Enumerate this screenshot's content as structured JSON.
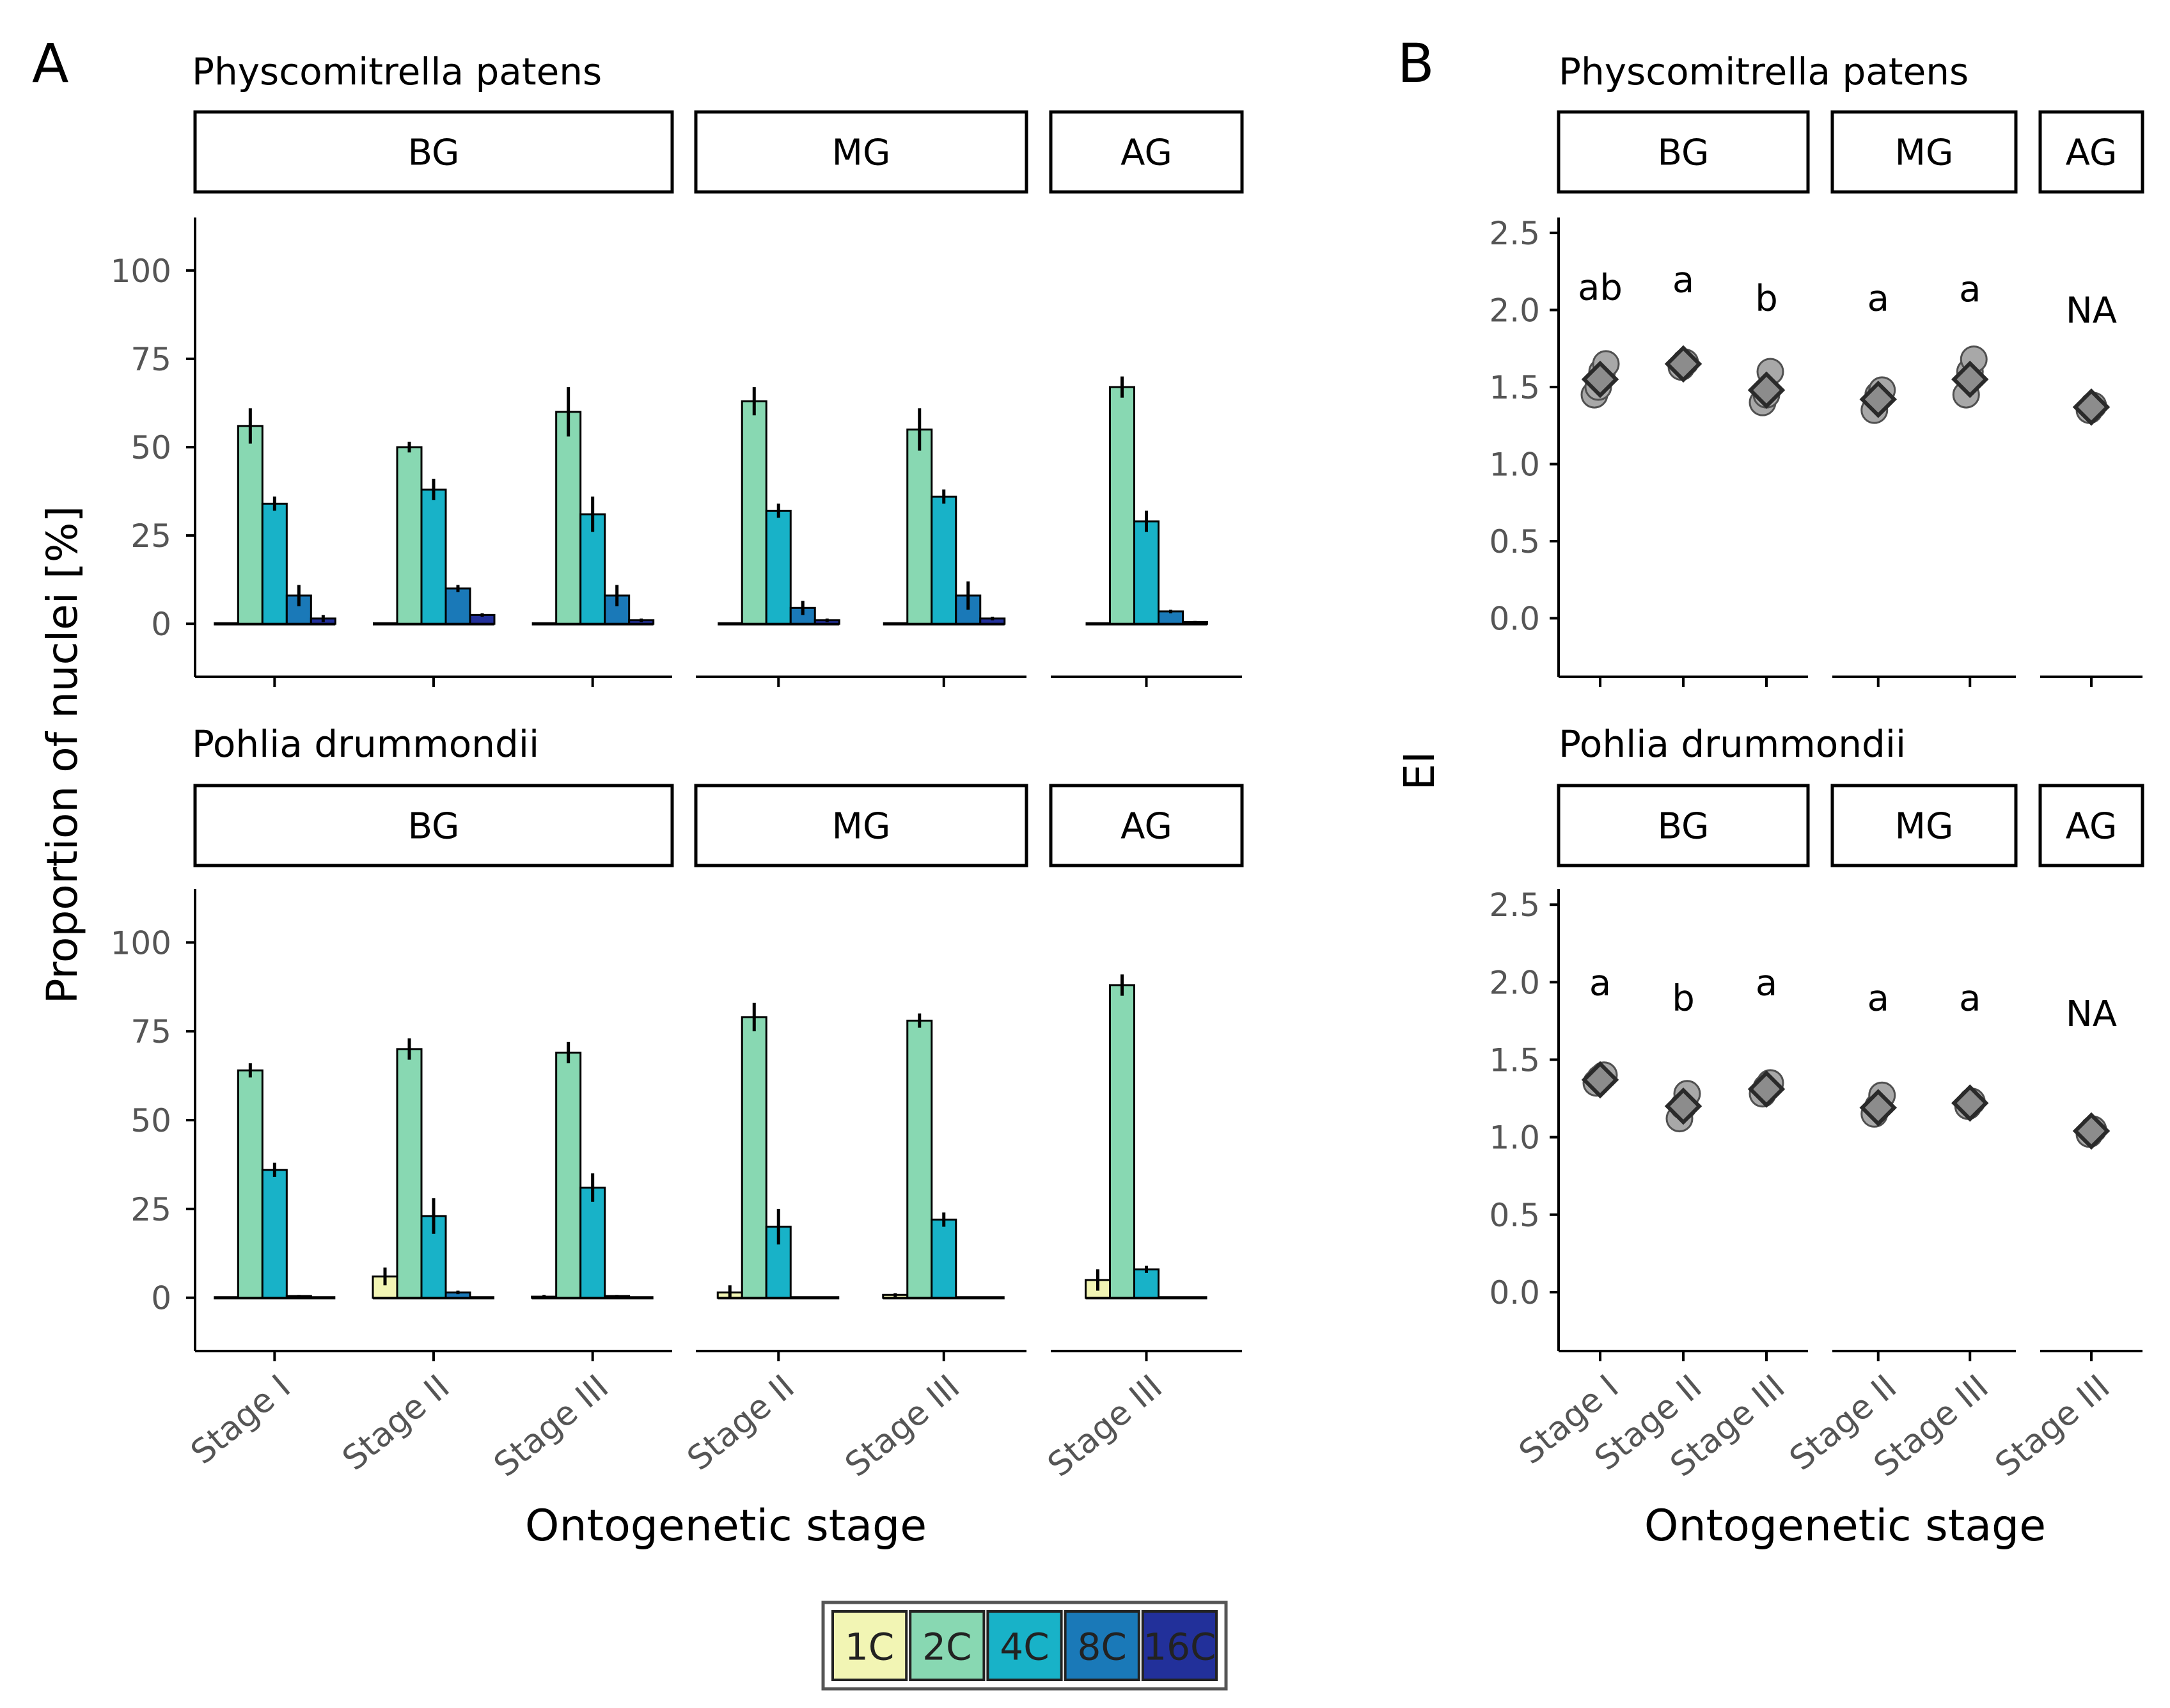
{
  "panel_labels": {
    "A": "A",
    "B": "B"
  },
  "colors": {
    "1C": "#f2f5b4",
    "2C": "#88d8b2",
    "4C": "#18b2c8",
    "8C": "#1a79b8",
    "16C": "#22309a",
    "axis": "#000000",
    "tick_text": "#555555",
    "point": "#a8a8a8",
    "point_edge": "#505050",
    "diamond": "#8c8c8c"
  },
  "legend": [
    "1C",
    "2C",
    "4C",
    "8C",
    "16C"
  ],
  "chart_data": [
    {
      "id": "A-top",
      "type": "bar",
      "title": "Physcomitrella patens",
      "ylabel": "Proportion of nuclei [%]",
      "xlabel": "Ontogenetic stage",
      "ylim": [
        -15,
        115
      ],
      "yticks": [
        0,
        25,
        50,
        75,
        100
      ],
      "ytick_labels": [
        "0",
        "25",
        "50",
        "75",
        "100"
      ],
      "series_names": [
        "1C",
        "2C",
        "4C",
        "8C",
        "16C"
      ],
      "facets": [
        {
          "label": "BG",
          "groups": [
            {
              "stage": "Stage I",
              "values": [
                0,
                56,
                34,
                8,
                1.5
              ],
              "errors": [
                0,
                5,
                2,
                3,
                1
              ]
            },
            {
              "stage": "Stage II",
              "values": [
                0,
                50,
                38,
                10,
                2.5
              ],
              "errors": [
                0,
                1.5,
                3,
                1,
                0.5
              ]
            },
            {
              "stage": "Stage III",
              "values": [
                0,
                60,
                31,
                8,
                1
              ],
              "errors": [
                0,
                7,
                5,
                3,
                0.5
              ]
            }
          ]
        },
        {
          "label": "MG",
          "groups": [
            {
              "stage": "Stage II",
              "values": [
                0,
                63,
                32,
                4.5,
                1
              ],
              "errors": [
                0,
                4,
                2,
                2,
                0.5
              ]
            },
            {
              "stage": "Stage III",
              "values": [
                0,
                55,
                36,
                8,
                1.5
              ],
              "errors": [
                0,
                6,
                2,
                4,
                0.5
              ]
            }
          ]
        },
        {
          "label": "AG",
          "groups": [
            {
              "stage": "Stage III",
              "values": [
                0,
                67,
                29,
                3.5,
                0.5
              ],
              "errors": [
                0,
                3,
                3,
                0.5,
                0.3
              ]
            }
          ]
        }
      ]
    },
    {
      "id": "A-bottom",
      "type": "bar",
      "title": "Pohlia drummondii",
      "ylabel": "Proportion of nuclei [%]",
      "xlabel": "Ontogenetic stage",
      "ylim": [
        -15,
        115
      ],
      "yticks": [
        0,
        25,
        50,
        75,
        100
      ],
      "ytick_labels": [
        "0",
        "25",
        "50",
        "75",
        "100"
      ],
      "series_names": [
        "1C",
        "2C",
        "4C",
        "8C",
        "16C"
      ],
      "facets": [
        {
          "label": "BG",
          "groups": [
            {
              "stage": "Stage I",
              "values": [
                0,
                64,
                36,
                0.5,
                0
              ],
              "errors": [
                0,
                2,
                2,
                0.3,
                0
              ]
            },
            {
              "stage": "Stage II",
              "values": [
                6,
                70,
                23,
                1.5,
                0
              ],
              "errors": [
                2.5,
                3,
                5,
                0.5,
                0
              ]
            },
            {
              "stage": "Stage III",
              "values": [
                0.3,
                69,
                31,
                0.5,
                0
              ],
              "errors": [
                0.5,
                3,
                4,
                0.3,
                0
              ]
            }
          ]
        },
        {
          "label": "MG",
          "groups": [
            {
              "stage": "Stage II",
              "values": [
                1.5,
                79,
                20,
                0,
                0
              ],
              "errors": [
                2,
                4,
                5,
                0,
                0
              ]
            },
            {
              "stage": "Stage III",
              "values": [
                0.8,
                78,
                22,
                0,
                0
              ],
              "errors": [
                0.5,
                2,
                2,
                0,
                0
              ]
            }
          ]
        },
        {
          "label": "AG",
          "groups": [
            {
              "stage": "Stage III",
              "values": [
                5,
                88,
                8,
                0,
                0
              ],
              "errors": [
                3,
                3,
                1,
                0,
                0
              ]
            }
          ]
        }
      ]
    },
    {
      "id": "B-top",
      "type": "scatter",
      "title": "Physcomitrella patens",
      "ylabel": "EI",
      "xlabel": "Ontogenetic stage",
      "ylim": [
        -0.38,
        2.6
      ],
      "yticks": [
        0,
        0.5,
        1,
        1.5,
        2,
        2.5
      ],
      "ytick_labels": [
        "0.0",
        "0.5",
        "1.0",
        "1.5",
        "2.0",
        "2.5"
      ],
      "facets": [
        {
          "label": "BG",
          "groups": [
            {
              "stage": "Stage I",
              "points": [
                1.45,
                1.5,
                1.6,
                1.65
              ],
              "mean": 1.55,
              "letter": "ab",
              "letter_y": 2.15
            },
            {
              "stage": "Stage II",
              "points": [
                1.63,
                1.66
              ],
              "mean": 1.65,
              "letter": "a",
              "letter_y": 2.2
            },
            {
              "stage": "Stage III",
              "points": [
                1.4,
                1.45,
                1.6
              ],
              "mean": 1.48,
              "letter": "b",
              "letter_y": 2.08
            }
          ]
        },
        {
          "label": "MG",
          "groups": [
            {
              "stage": "Stage II",
              "points": [
                1.35,
                1.45,
                1.48
              ],
              "mean": 1.42,
              "letter": "a",
              "letter_y": 2.08
            },
            {
              "stage": "Stage III",
              "points": [
                1.45,
                1.6,
                1.68
              ],
              "mean": 1.55,
              "letter": "a",
              "letter_y": 2.14
            }
          ]
        },
        {
          "label": "AG",
          "groups": [
            {
              "stage": "Stage III",
              "points": [
                1.35,
                1.38
              ],
              "mean": 1.37,
              "letter": "NA",
              "letter_y": 2.0
            }
          ]
        }
      ]
    },
    {
      "id": "B-bottom",
      "type": "scatter",
      "title": "Pohlia drummondii",
      "ylabel": "EI",
      "xlabel": "Ontogenetic stage",
      "ylim": [
        -0.38,
        2.6
      ],
      "yticks": [
        0,
        0.5,
        1,
        1.5,
        2,
        2.5
      ],
      "ytick_labels": [
        "0.0",
        "0.5",
        "1.0",
        "1.5",
        "2.0",
        "2.5"
      ],
      "facets": [
        {
          "label": "BG",
          "groups": [
            {
              "stage": "Stage I",
              "points": [
                1.35,
                1.38,
                1.4
              ],
              "mean": 1.37,
              "letter": "a",
              "letter_y": 2.0
            },
            {
              "stage": "Stage II",
              "points": [
                1.12,
                1.2,
                1.28
              ],
              "mean": 1.2,
              "letter": "b",
              "letter_y": 1.9
            },
            {
              "stage": "Stage III",
              "points": [
                1.28,
                1.32,
                1.35
              ],
              "mean": 1.31,
              "letter": "a",
              "letter_y": 2.0
            }
          ]
        },
        {
          "label": "MG",
          "groups": [
            {
              "stage": "Stage II",
              "points": [
                1.15,
                1.2,
                1.27
              ],
              "mean": 1.19,
              "letter": "a",
              "letter_y": 1.9
            },
            {
              "stage": "Stage III",
              "points": [
                1.2,
                1.23
              ],
              "mean": 1.22,
              "letter": "a",
              "letter_y": 1.9
            }
          ]
        },
        {
          "label": "AG",
          "groups": [
            {
              "stage": "Stage III",
              "points": [
                1.02,
                1.05
              ],
              "mean": 1.04,
              "letter": "NA",
              "letter_y": 1.8
            }
          ]
        }
      ]
    }
  ]
}
